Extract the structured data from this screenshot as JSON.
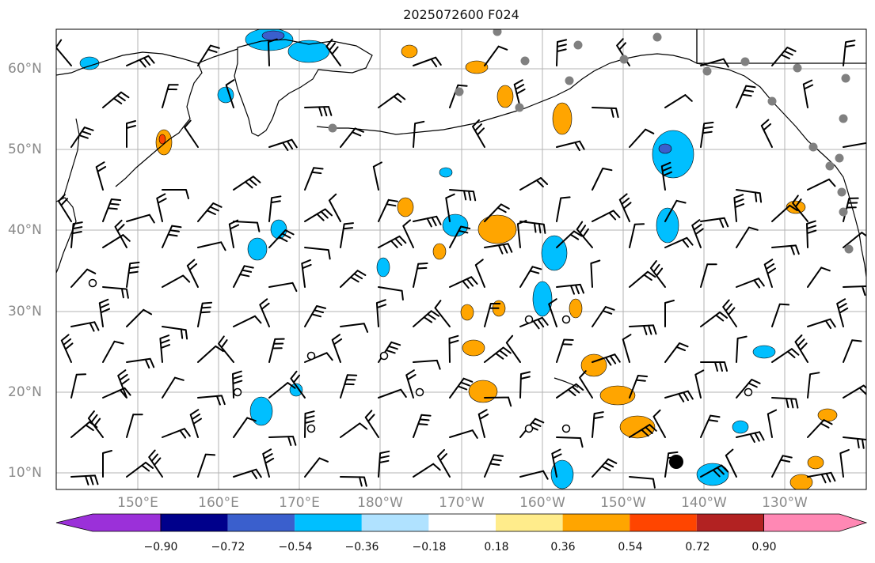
{
  "title": "2025072600 F024",
  "lat_labels": [
    "60°N",
    "50°N",
    "40°N",
    "30°N",
    "20°N",
    "10°N"
  ],
  "lon_labels": [
    "150°E",
    "160°E",
    "170°E",
    "180°W",
    "170°W",
    "160°W",
    "150°W",
    "140°W",
    "130°W"
  ],
  "colorbar": {
    "ticks": [
      "−0.90",
      "−0.72",
      "−0.54",
      "−0.36",
      "−0.18",
      "0.18",
      "0.36",
      "0.54",
      "0.72",
      "0.90"
    ],
    "colors": [
      "#9b30d9",
      "#00008b",
      "#3a5fcd",
      "#00bfff",
      "#b0e2ff",
      "#ffffff",
      "#ffec8b",
      "#ffa500",
      "#ff4500",
      "#b22222",
      "#ff88b4"
    ]
  },
  "colors": {
    "coast": "#000000",
    "grid": "#b3b3b3",
    "station": "#808080",
    "positive": "#ffa500",
    "negative": "#00bfff",
    "strong_negative": "#3a5fcd",
    "strong_positive": "#ff4500"
  },
  "legend_labels": {
    "low_center_icon": "large-black-dot-icon",
    "calm_icon": "open-circle-icon",
    "barb_icon": "wind-barb-icon"
  }
}
